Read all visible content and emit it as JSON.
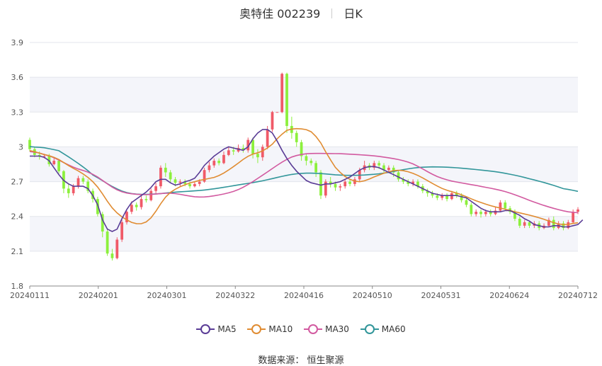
{
  "title": {
    "name": "奥特佳 002239",
    "period": "日K"
  },
  "source": "数据来源：  恒生聚源",
  "chart_data": {
    "type": "candlestick",
    "ylim": [
      1.8,
      3.9
    ],
    "yticks": [
      "3.9",
      "3.6",
      "3.3",
      "3",
      "2.7",
      "2.4",
      "2.1",
      "1.8"
    ],
    "ytick_values": [
      3.9,
      3.6,
      3.3,
      3.0,
      2.7,
      2.4,
      2.1,
      1.8
    ],
    "x_labels": [
      "20240111",
      "20240201",
      "20240301",
      "20240322",
      "20240416",
      "20240510",
      "20240531",
      "20240624",
      "20240712"
    ],
    "colors": {
      "up": "#f05a68",
      "down": "#8cf03c",
      "MA5": "#5a3c96",
      "MA10": "#e08c32",
      "MA30": "#d25aa0",
      "MA60": "#32969a"
    },
    "candles": [
      [
        3.06,
        2.98,
        3.08,
        2.96
      ],
      [
        2.98,
        2.93,
        3.0,
        2.91
      ],
      [
        2.93,
        2.92,
        2.96,
        2.89
      ],
      [
        2.92,
        2.92,
        2.94,
        2.9
      ],
      [
        2.92,
        2.85,
        2.94,
        2.83
      ],
      [
        2.85,
        2.88,
        2.91,
        2.84
      ],
      [
        2.88,
        2.79,
        2.89,
        2.77
      ],
      [
        2.79,
        2.64,
        2.8,
        2.6
      ],
      [
        2.64,
        2.6,
        2.68,
        2.56
      ],
      [
        2.6,
        2.66,
        2.68,
        2.58
      ],
      [
        2.66,
        2.73,
        2.75,
        2.64
      ],
      [
        2.73,
        2.7,
        2.75,
        2.68
      ],
      [
        2.7,
        2.62,
        2.72,
        2.6
      ],
      [
        2.62,
        2.55,
        2.64,
        2.52
      ],
      [
        2.55,
        2.42,
        2.57,
        2.4
      ],
      [
        2.42,
        2.27,
        2.44,
        2.22
      ],
      [
        2.27,
        2.08,
        2.3,
        2.06
      ],
      [
        2.08,
        2.04,
        2.12,
        2.02
      ],
      [
        2.04,
        2.2,
        2.22,
        2.03
      ],
      [
        2.2,
        2.35,
        2.37,
        2.18
      ],
      [
        2.35,
        2.44,
        2.45,
        2.33
      ],
      [
        2.44,
        2.5,
        2.53,
        2.42
      ],
      [
        2.5,
        2.48,
        2.52,
        2.45
      ],
      [
        2.48,
        2.55,
        2.58,
        2.46
      ],
      [
        2.55,
        2.54,
        2.58,
        2.52
      ],
      [
        2.54,
        2.62,
        2.64,
        2.53
      ],
      [
        2.62,
        2.66,
        2.69,
        2.6
      ],
      [
        2.66,
        2.82,
        2.84,
        2.64
      ],
      [
        2.82,
        2.78,
        2.86,
        2.74
      ],
      [
        2.78,
        2.72,
        2.8,
        2.69
      ],
      [
        2.72,
        2.69,
        2.74,
        2.66
      ],
      [
        2.69,
        2.7,
        2.72,
        2.66
      ],
      [
        2.7,
        2.68,
        2.72,
        2.66
      ],
      [
        2.68,
        2.66,
        2.7,
        2.64
      ],
      [
        2.66,
        2.68,
        2.7,
        2.65
      ],
      [
        2.68,
        2.7,
        2.72,
        2.66
      ],
      [
        2.7,
        2.8,
        2.82,
        2.69
      ],
      [
        2.8,
        2.84,
        2.87,
        2.78
      ],
      [
        2.84,
        2.88,
        2.9,
        2.82
      ],
      [
        2.88,
        2.86,
        2.9,
        2.84
      ],
      [
        2.86,
        2.93,
        2.96,
        2.85
      ],
      [
        2.93,
        2.97,
        3.0,
        2.92
      ],
      [
        2.97,
        2.96,
        3.0,
        2.93
      ],
      [
        2.96,
        2.99,
        3.02,
        2.95
      ],
      [
        2.99,
        2.97,
        3.02,
        2.95
      ],
      [
        2.97,
        3.06,
        3.08,
        2.95
      ],
      [
        3.06,
        2.94,
        3.08,
        2.9
      ],
      [
        2.94,
        2.91,
        2.98,
        2.86
      ],
      [
        2.91,
        3.0,
        3.02,
        2.88
      ],
      [
        3.0,
        3.15,
        3.18,
        2.98
      ],
      [
        3.15,
        3.3,
        3.31,
        3.13
      ],
      [
        3.3,
        3.3,
        3.3,
        3.3
      ],
      [
        3.3,
        3.63,
        3.64,
        3.29
      ],
      [
        3.63,
        3.18,
        3.64,
        3.12
      ],
      [
        3.18,
        3.12,
        3.26,
        3.07
      ],
      [
        3.12,
        3.04,
        3.14,
        3.0
      ],
      [
        3.04,
        2.92,
        3.06,
        2.88
      ],
      [
        2.92,
        2.88,
        2.94,
        2.84
      ],
      [
        2.88,
        2.86,
        2.9,
        2.84
      ],
      [
        2.86,
        2.78,
        2.88,
        2.74
      ],
      [
        2.78,
        2.58,
        2.8,
        2.55
      ],
      [
        2.58,
        2.7,
        2.72,
        2.56
      ],
      [
        2.7,
        2.68,
        2.74,
        2.65
      ],
      [
        2.68,
        2.65,
        2.7,
        2.62
      ],
      [
        2.65,
        2.66,
        2.68,
        2.62
      ],
      [
        2.66,
        2.7,
        2.72,
        2.64
      ],
      [
        2.7,
        2.68,
        2.72,
        2.66
      ],
      [
        2.68,
        2.72,
        2.74,
        2.66
      ],
      [
        2.72,
        2.8,
        2.82,
        2.7
      ],
      [
        2.8,
        2.84,
        2.88,
        2.78
      ],
      [
        2.84,
        2.82,
        2.86,
        2.8
      ],
      [
        2.82,
        2.86,
        2.88,
        2.8
      ],
      [
        2.86,
        2.84,
        2.88,
        2.81
      ],
      [
        2.84,
        2.8,
        2.86,
        2.78
      ],
      [
        2.8,
        2.82,
        2.84,
        2.78
      ],
      [
        2.82,
        2.78,
        2.84,
        2.74
      ],
      [
        2.78,
        2.72,
        2.8,
        2.7
      ],
      [
        2.72,
        2.7,
        2.74,
        2.68
      ],
      [
        2.7,
        2.68,
        2.72,
        2.66
      ],
      [
        2.68,
        2.7,
        2.72,
        2.66
      ],
      [
        2.7,
        2.66,
        2.72,
        2.64
      ],
      [
        2.66,
        2.62,
        2.68,
        2.6
      ],
      [
        2.62,
        2.6,
        2.64,
        2.57
      ],
      [
        2.6,
        2.58,
        2.62,
        2.56
      ],
      [
        2.58,
        2.56,
        2.6,
        2.54
      ],
      [
        2.56,
        2.58,
        2.6,
        2.54
      ],
      [
        2.58,
        2.55,
        2.6,
        2.53
      ],
      [
        2.55,
        2.6,
        2.62,
        2.54
      ],
      [
        2.6,
        2.58,
        2.62,
        2.56
      ],
      [
        2.58,
        2.54,
        2.6,
        2.52
      ],
      [
        2.54,
        2.5,
        2.56,
        2.48
      ],
      [
        2.5,
        2.42,
        2.52,
        2.4
      ],
      [
        2.42,
        2.44,
        2.46,
        2.4
      ],
      [
        2.44,
        2.42,
        2.46,
        2.39
      ],
      [
        2.42,
        2.44,
        2.46,
        2.4
      ],
      [
        2.44,
        2.42,
        2.46,
        2.4
      ],
      [
        2.42,
        2.45,
        2.48,
        2.41
      ],
      [
        2.45,
        2.52,
        2.54,
        2.44
      ],
      [
        2.52,
        2.47,
        2.54,
        2.45
      ],
      [
        2.47,
        2.44,
        2.49,
        2.42
      ],
      [
        2.44,
        2.38,
        2.46,
        2.36
      ],
      [
        2.38,
        2.32,
        2.4,
        2.3
      ],
      [
        2.32,
        2.35,
        2.37,
        2.3
      ],
      [
        2.35,
        2.32,
        2.36,
        2.3
      ],
      [
        2.32,
        2.34,
        2.36,
        2.3
      ],
      [
        2.34,
        2.3,
        2.36,
        2.28
      ],
      [
        2.3,
        2.32,
        2.34,
        2.29
      ],
      [
        2.32,
        2.37,
        2.39,
        2.31
      ],
      [
        2.37,
        2.3,
        2.4,
        2.28
      ],
      [
        2.3,
        2.34,
        2.36,
        2.29
      ],
      [
        2.34,
        2.3,
        2.36,
        2.28
      ],
      [
        2.3,
        2.35,
        2.37,
        2.29
      ],
      [
        2.35,
        2.44,
        2.46,
        2.34
      ],
      [
        2.44,
        2.46,
        2.48,
        2.42
      ]
    ],
    "MA5": [
      2.92,
      2.92,
      2.92,
      2.91,
      2.88,
      2.82,
      2.76,
      2.71,
      2.68,
      2.66,
      2.66,
      2.66,
      2.64,
      2.58,
      2.5,
      2.37,
      2.29,
      2.27,
      2.29,
      2.38,
      2.46,
      2.52,
      2.55,
      2.58,
      2.61,
      2.65,
      2.7,
      2.72,
      2.72,
      2.69,
      2.67,
      2.68,
      2.7,
      2.71,
      2.73,
      2.78,
      2.84,
      2.88,
      2.92,
      2.95,
      2.98,
      3.0,
      2.99,
      2.98,
      2.97,
      3.0,
      3.07,
      3.12,
      3.15,
      3.15,
      3.12,
      3.05,
      2.97,
      2.9,
      2.84,
      2.79,
      2.75,
      2.71,
      2.69,
      2.68,
      2.67,
      2.68,
      2.68,
      2.69,
      2.7,
      2.72,
      2.74,
      2.77,
      2.8,
      2.82,
      2.83,
      2.83,
      2.82,
      2.8,
      2.78,
      2.76,
      2.74,
      2.72,
      2.7,
      2.68,
      2.66,
      2.64,
      2.62,
      2.6,
      2.59,
      2.58,
      2.58,
      2.58,
      2.58,
      2.57,
      2.56,
      2.53,
      2.5,
      2.47,
      2.45,
      2.44,
      2.44,
      2.44,
      2.45,
      2.45,
      2.43,
      2.41,
      2.38,
      2.36,
      2.33,
      2.32,
      2.31,
      2.31,
      2.32,
      2.32,
      2.31,
      2.31,
      2.32,
      2.33,
      2.37
    ]
  }
}
